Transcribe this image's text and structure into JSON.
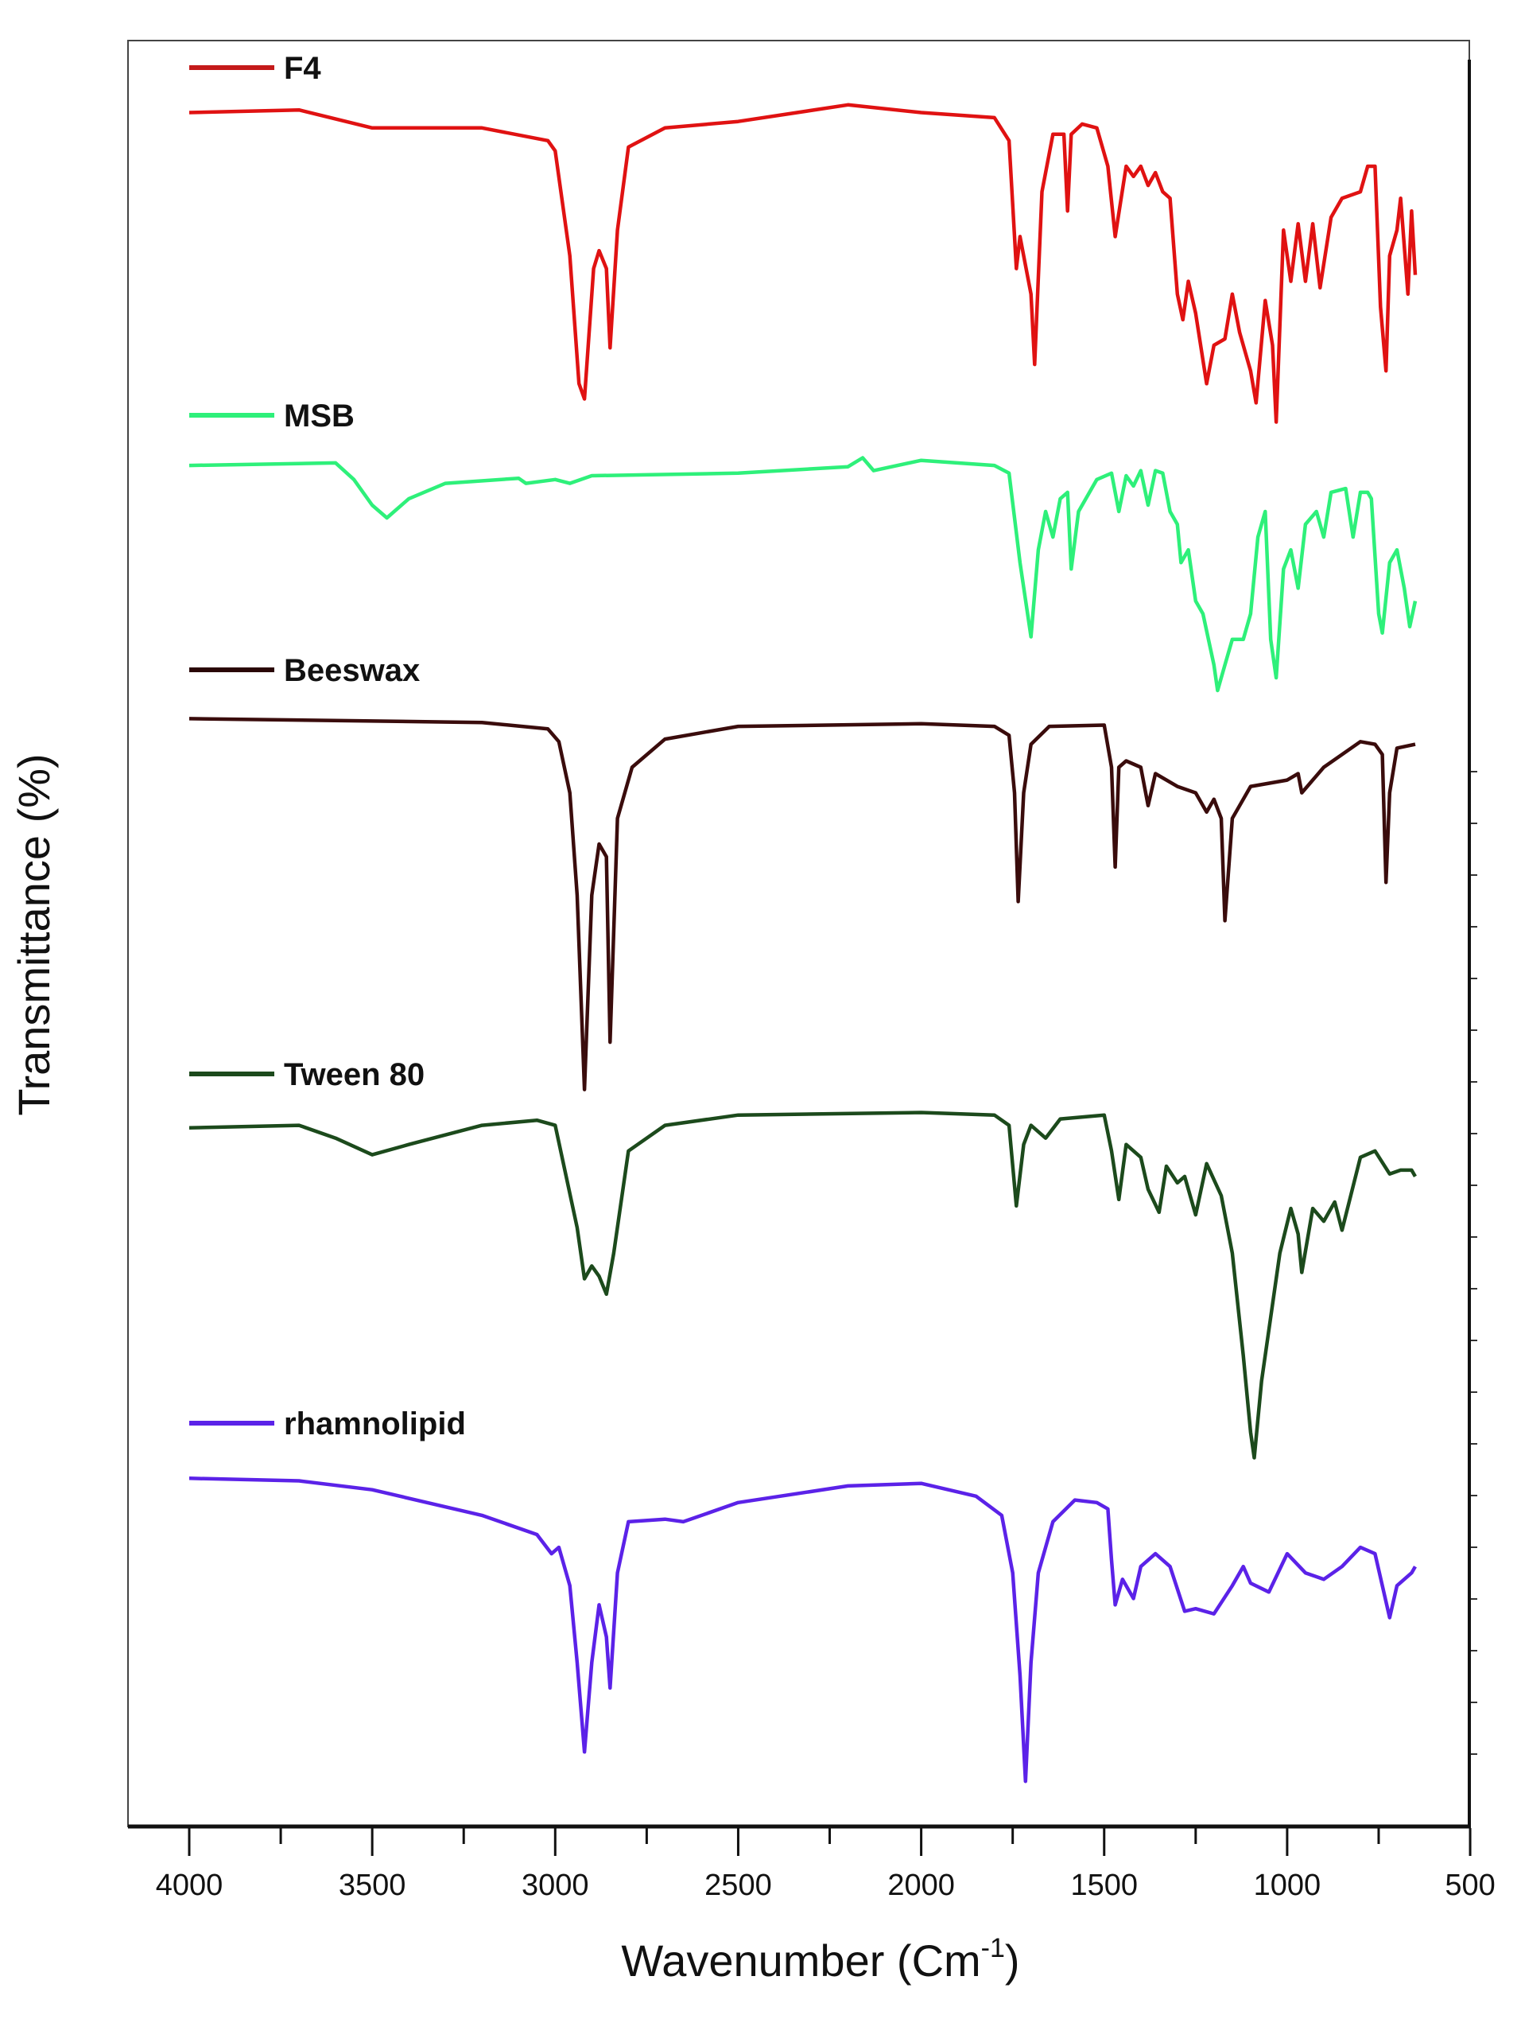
{
  "chart_data": {
    "type": "line",
    "title": "",
    "xlabel": "Wavenumber (Cm",
    "xlabel_sup": "-1",
    "xlabel_close": ")",
    "ylabel": "Transmittance (%)",
    "xlim": [
      4170,
      500
    ],
    "ylim": [
      0,
      1400
    ],
    "y_units": "arbitrary offset units",
    "x_ticks": [
      4000,
      3500,
      3000,
      2500,
      2000,
      1500,
      1000,
      500
    ],
    "x_tick_labels": [
      "4000",
      "3500",
      "3000",
      "2500",
      "2000",
      "1500",
      "1000",
      "500"
    ],
    "grid": false,
    "legend_placement": "inline-left-above-each-trace",
    "series": [
      {
        "name": "F4",
        "color": "#e01212",
        "legend_color": "#c41a1a",
        "points": [
          [
            4000,
            1342
          ],
          [
            3700,
            1344
          ],
          [
            3500,
            1330
          ],
          [
            3200,
            1330
          ],
          [
            3020,
            1320
          ],
          [
            3000,
            1312
          ],
          [
            2960,
            1230
          ],
          [
            2935,
            1130
          ],
          [
            2920,
            1118
          ],
          [
            2895,
            1220
          ],
          [
            2880,
            1234
          ],
          [
            2860,
            1220
          ],
          [
            2850,
            1158
          ],
          [
            2830,
            1250
          ],
          [
            2800,
            1315
          ],
          [
            2700,
            1330
          ],
          [
            2500,
            1335
          ],
          [
            2200,
            1348
          ],
          [
            2000,
            1342
          ],
          [
            1800,
            1338
          ],
          [
            1760,
            1320
          ],
          [
            1740,
            1220
          ],
          [
            1730,
            1245
          ],
          [
            1700,
            1200
          ],
          [
            1690,
            1145
          ],
          [
            1670,
            1280
          ],
          [
            1640,
            1325
          ],
          [
            1610,
            1325
          ],
          [
            1600,
            1265
          ],
          [
            1590,
            1325
          ],
          [
            1560,
            1333
          ],
          [
            1520,
            1330
          ],
          [
            1490,
            1300
          ],
          [
            1470,
            1245
          ],
          [
            1440,
            1300
          ],
          [
            1420,
            1292
          ],
          [
            1400,
            1300
          ],
          [
            1380,
            1285
          ],
          [
            1360,
            1295
          ],
          [
            1340,
            1280
          ],
          [
            1320,
            1275
          ],
          [
            1300,
            1200
          ],
          [
            1285,
            1180
          ],
          [
            1270,
            1210
          ],
          [
            1250,
            1185
          ],
          [
            1220,
            1130
          ],
          [
            1200,
            1160
          ],
          [
            1170,
            1165
          ],
          [
            1150,
            1200
          ],
          [
            1130,
            1170
          ],
          [
            1100,
            1140
          ],
          [
            1085,
            1115
          ],
          [
            1060,
            1195
          ],
          [
            1040,
            1160
          ],
          [
            1030,
            1100
          ],
          [
            1010,
            1250
          ],
          [
            990,
            1210
          ],
          [
            970,
            1255
          ],
          [
            950,
            1210
          ],
          [
            930,
            1255
          ],
          [
            910,
            1205
          ],
          [
            880,
            1260
          ],
          [
            850,
            1275
          ],
          [
            800,
            1280
          ],
          [
            780,
            1300
          ],
          [
            760,
            1300
          ],
          [
            745,
            1190
          ],
          [
            730,
            1140
          ],
          [
            720,
            1230
          ],
          [
            700,
            1250
          ],
          [
            690,
            1275
          ],
          [
            670,
            1200
          ],
          [
            660,
            1265
          ],
          [
            650,
            1215
          ]
        ]
      },
      {
        "name": "MSB",
        "color": "#2ef07a",
        "legend_color": "#2ef07a",
        "points": [
          [
            4000,
            1066
          ],
          [
            3600,
            1068
          ],
          [
            3550,
            1055
          ],
          [
            3500,
            1035
          ],
          [
            3460,
            1025
          ],
          [
            3400,
            1040
          ],
          [
            3300,
            1052
          ],
          [
            3100,
            1056
          ],
          [
            3080,
            1052
          ],
          [
            3000,
            1055
          ],
          [
            2960,
            1052
          ],
          [
            2900,
            1058
          ],
          [
            2500,
            1060
          ],
          [
            2200,
            1065
          ],
          [
            2160,
            1072
          ],
          [
            2130,
            1062
          ],
          [
            2000,
            1070
          ],
          [
            1800,
            1066
          ],
          [
            1760,
            1060
          ],
          [
            1730,
            990
          ],
          [
            1700,
            932
          ],
          [
            1680,
            1000
          ],
          [
            1660,
            1030
          ],
          [
            1640,
            1010
          ],
          [
            1620,
            1040
          ],
          [
            1600,
            1045
          ],
          [
            1590,
            985
          ],
          [
            1570,
            1030
          ],
          [
            1520,
            1055
          ],
          [
            1480,
            1060
          ],
          [
            1460,
            1030
          ],
          [
            1440,
            1058
          ],
          [
            1420,
            1050
          ],
          [
            1400,
            1062
          ],
          [
            1380,
            1035
          ],
          [
            1360,
            1062
          ],
          [
            1340,
            1060
          ],
          [
            1320,
            1030
          ],
          [
            1300,
            1020
          ],
          [
            1290,
            990
          ],
          [
            1270,
            1000
          ],
          [
            1250,
            960
          ],
          [
            1230,
            950
          ],
          [
            1200,
            910
          ],
          [
            1190,
            890
          ],
          [
            1170,
            910
          ],
          [
            1150,
            930
          ],
          [
            1120,
            930
          ],
          [
            1100,
            950
          ],
          [
            1080,
            1010
          ],
          [
            1060,
            1030
          ],
          [
            1045,
            930
          ],
          [
            1030,
            900
          ],
          [
            1010,
            985
          ],
          [
            990,
            1000
          ],
          [
            970,
            970
          ],
          [
            950,
            1020
          ],
          [
            920,
            1030
          ],
          [
            900,
            1010
          ],
          [
            880,
            1045
          ],
          [
            840,
            1048
          ],
          [
            820,
            1010
          ],
          [
            800,
            1045
          ],
          [
            780,
            1045
          ],
          [
            770,
            1040
          ],
          [
            750,
            950
          ],
          [
            740,
            935
          ],
          [
            720,
            990
          ],
          [
            700,
            1000
          ],
          [
            680,
            970
          ],
          [
            665,
            940
          ],
          [
            650,
            960
          ]
        ]
      },
      {
        "name": "Beeswax",
        "color": "#3a0c0c",
        "legend_color": "#2a0606",
        "points": [
          [
            4000,
            868
          ],
          [
            3200,
            865
          ],
          [
            3020,
            860
          ],
          [
            2990,
            850
          ],
          [
            2960,
            810
          ],
          [
            2940,
            730
          ],
          [
            2920,
            578
          ],
          [
            2900,
            730
          ],
          [
            2880,
            770
          ],
          [
            2860,
            760
          ],
          [
            2850,
            615
          ],
          [
            2830,
            790
          ],
          [
            2790,
            830
          ],
          [
            2700,
            852
          ],
          [
            2500,
            862
          ],
          [
            2000,
            864
          ],
          [
            1800,
            862
          ],
          [
            1760,
            855
          ],
          [
            1745,
            810
          ],
          [
            1735,
            725
          ],
          [
            1720,
            810
          ],
          [
            1700,
            848
          ],
          [
            1650,
            862
          ],
          [
            1500,
            863
          ],
          [
            1480,
            830
          ],
          [
            1470,
            752
          ],
          [
            1460,
            830
          ],
          [
            1440,
            835
          ],
          [
            1400,
            830
          ],
          [
            1380,
            800
          ],
          [
            1360,
            825
          ],
          [
            1300,
            815
          ],
          [
            1250,
            810
          ],
          [
            1220,
            795
          ],
          [
            1200,
            805
          ],
          [
            1180,
            790
          ],
          [
            1170,
            710
          ],
          [
            1150,
            790
          ],
          [
            1100,
            815
          ],
          [
            1000,
            820
          ],
          [
            970,
            825
          ],
          [
            960,
            810
          ],
          [
            900,
            830
          ],
          [
            800,
            850
          ],
          [
            760,
            848
          ],
          [
            740,
            840
          ],
          [
            730,
            740
          ],
          [
            720,
            810
          ],
          [
            700,
            845
          ],
          [
            650,
            848
          ]
        ]
      },
      {
        "name": "Tween 80",
        "color": "#1c4a1c",
        "legend_color": "#1c4a1c",
        "points": [
          [
            4000,
            548
          ],
          [
            3700,
            550
          ],
          [
            3600,
            540
          ],
          [
            3500,
            527
          ],
          [
            3400,
            535
          ],
          [
            3200,
            550
          ],
          [
            3050,
            554
          ],
          [
            3000,
            550
          ],
          [
            2970,
            510
          ],
          [
            2940,
            470
          ],
          [
            2920,
            430
          ],
          [
            2900,
            440
          ],
          [
            2880,
            432
          ],
          [
            2860,
            418
          ],
          [
            2840,
            450
          ],
          [
            2800,
            530
          ],
          [
            2700,
            550
          ],
          [
            2500,
            558
          ],
          [
            2000,
            560
          ],
          [
            1800,
            558
          ],
          [
            1760,
            550
          ],
          [
            1740,
            487
          ],
          [
            1720,
            535
          ],
          [
            1700,
            550
          ],
          [
            1660,
            540
          ],
          [
            1620,
            555
          ],
          [
            1500,
            558
          ],
          [
            1480,
            530
          ],
          [
            1460,
            492
          ],
          [
            1440,
            535
          ],
          [
            1400,
            525
          ],
          [
            1380,
            500
          ],
          [
            1350,
            482
          ],
          [
            1330,
            518
          ],
          [
            1300,
            505
          ],
          [
            1280,
            510
          ],
          [
            1250,
            480
          ],
          [
            1220,
            520
          ],
          [
            1180,
            495
          ],
          [
            1150,
            450
          ],
          [
            1120,
            370
          ],
          [
            1100,
            310
          ],
          [
            1090,
            290
          ],
          [
            1070,
            350
          ],
          [
            1050,
            390
          ],
          [
            1020,
            450
          ],
          [
            990,
            485
          ],
          [
            970,
            465
          ],
          [
            960,
            435
          ],
          [
            930,
            485
          ],
          [
            900,
            475
          ],
          [
            870,
            490
          ],
          [
            850,
            468
          ],
          [
            800,
            525
          ],
          [
            760,
            530
          ],
          [
            720,
            512
          ],
          [
            690,
            515
          ],
          [
            660,
            515
          ],
          [
            650,
            510
          ]
        ]
      },
      {
        "name": "rhamnolipid",
        "color": "#5b22e8",
        "legend_color": "#5b22e8",
        "points": [
          [
            4000,
            274
          ],
          [
            3700,
            272
          ],
          [
            3500,
            265
          ],
          [
            3200,
            245
          ],
          [
            3050,
            230
          ],
          [
            3010,
            215
          ],
          [
            2990,
            220
          ],
          [
            2960,
            190
          ],
          [
            2940,
            130
          ],
          [
            2920,
            60
          ],
          [
            2900,
            130
          ],
          [
            2880,
            175
          ],
          [
            2860,
            150
          ],
          [
            2850,
            110
          ],
          [
            2830,
            200
          ],
          [
            2800,
            240
          ],
          [
            2700,
            242
          ],
          [
            2650,
            240
          ],
          [
            2500,
            255
          ],
          [
            2200,
            268
          ],
          [
            2000,
            270
          ],
          [
            1850,
            260
          ],
          [
            1780,
            245
          ],
          [
            1750,
            200
          ],
          [
            1730,
            120
          ],
          [
            1715,
            37
          ],
          [
            1700,
            130
          ],
          [
            1680,
            200
          ],
          [
            1640,
            240
          ],
          [
            1580,
            257
          ],
          [
            1520,
            255
          ],
          [
            1490,
            250
          ],
          [
            1480,
            210
          ],
          [
            1470,
            175
          ],
          [
            1450,
            195
          ],
          [
            1420,
            180
          ],
          [
            1400,
            205
          ],
          [
            1360,
            215
          ],
          [
            1320,
            205
          ],
          [
            1280,
            170
          ],
          [
            1250,
            172
          ],
          [
            1200,
            168
          ],
          [
            1150,
            190
          ],
          [
            1120,
            205
          ],
          [
            1100,
            192
          ],
          [
            1050,
            185
          ],
          [
            1000,
            215
          ],
          [
            950,
            200
          ],
          [
            900,
            195
          ],
          [
            850,
            205
          ],
          [
            800,
            220
          ],
          [
            760,
            215
          ],
          [
            740,
            190
          ],
          [
            720,
            165
          ],
          [
            700,
            190
          ],
          [
            660,
            200
          ],
          [
            650,
            205
          ]
        ]
      }
    ]
  }
}
